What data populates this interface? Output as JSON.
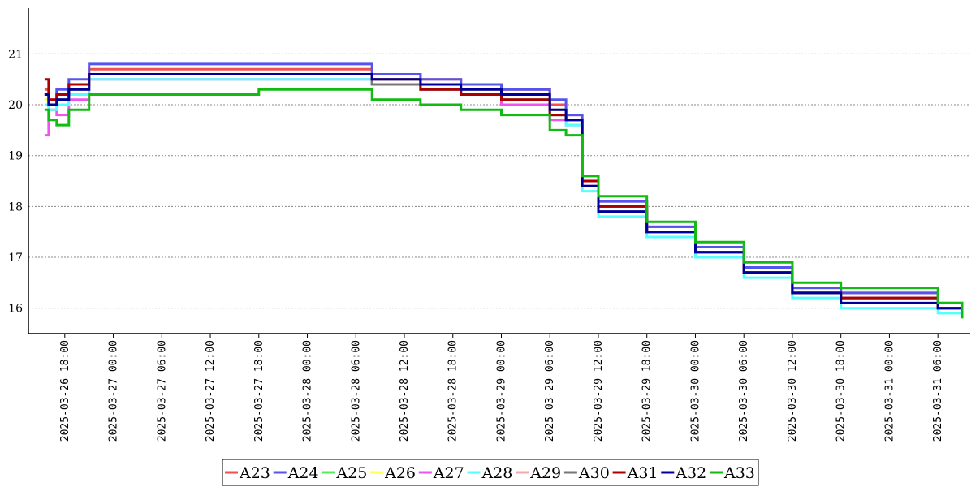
{
  "chart_data": {
    "type": "line",
    "title": "",
    "xlabel": "",
    "ylabel": "",
    "ylim": [
      15.5,
      21.9
    ],
    "xlim": [
      "2025-03-26 13:30",
      "2025-03-31 10:00"
    ],
    "y_ticks": [
      16,
      17,
      18,
      19,
      20,
      21
    ],
    "x_ticks": [
      "2025-03-26 18:00",
      "2025-03-27 00:00",
      "2025-03-27 06:00",
      "2025-03-27 12:00",
      "2025-03-27 18:00",
      "2025-03-28 00:00",
      "2025-03-28 06:00",
      "2025-03-28 12:00",
      "2025-03-28 18:00",
      "2025-03-29 00:00",
      "2025-03-29 06:00",
      "2025-03-29 12:00",
      "2025-03-29 18:00",
      "2025-03-30 00:00",
      "2025-03-30 06:00",
      "2025-03-30 12:00",
      "2025-03-30 18:00",
      "2025-03-31 00:00",
      "2025-03-31 06:00"
    ],
    "grid": "horizontal-dotted",
    "legend_position": "bottom-center",
    "series": [
      {
        "name": "A23",
        "color": "#f05050",
        "x": [
          "2025-03-26 15:30",
          "2025-03-26 16:00",
          "2025-03-26 17:00",
          "2025-03-26 18:30",
          "2025-03-26 21:00",
          "2025-03-27 06:00",
          "2025-03-27 18:00",
          "2025-03-28 05:00",
          "2025-03-28 08:00",
          "2025-03-28 14:00",
          "2025-03-28 19:00",
          "2025-03-29 00:00",
          "2025-03-29 06:00",
          "2025-03-29 08:00",
          "2025-03-29 10:00",
          "2025-03-29 12:00",
          "2025-03-29 18:00",
          "2025-03-30 00:00",
          "2025-03-30 06:00",
          "2025-03-30 12:00",
          "2025-03-30 18:00",
          "2025-03-31 06:00",
          "2025-03-31 09:00"
        ],
        "y": [
          20.3,
          20.1,
          20.2,
          20.4,
          20.7,
          20.7,
          20.7,
          20.7,
          20.6,
          20.5,
          20.4,
          20.3,
          20.0,
          19.8,
          18.5,
          18.1,
          17.6,
          17.2,
          16.8,
          16.4,
          16.3,
          16.1,
          15.9
        ]
      },
      {
        "name": "A24",
        "color": "#5555ee",
        "x": [
          "2025-03-26 15:30",
          "2025-03-26 16:00",
          "2025-03-26 17:00",
          "2025-03-26 18:30",
          "2025-03-26 21:00",
          "2025-03-27 06:00",
          "2025-03-27 18:00",
          "2025-03-28 05:00",
          "2025-03-28 08:00",
          "2025-03-28 14:00",
          "2025-03-28 19:00",
          "2025-03-29 00:00",
          "2025-03-29 06:00",
          "2025-03-29 08:00",
          "2025-03-29 10:00",
          "2025-03-29 12:00",
          "2025-03-29 18:00",
          "2025-03-30 00:00",
          "2025-03-30 06:00",
          "2025-03-30 12:00",
          "2025-03-30 18:00",
          "2025-03-31 06:00",
          "2025-03-31 09:00"
        ],
        "y": [
          20.2,
          20.0,
          20.3,
          20.5,
          20.8,
          20.8,
          20.8,
          20.8,
          20.6,
          20.5,
          20.4,
          20.3,
          20.1,
          19.8,
          18.6,
          18.1,
          17.6,
          17.2,
          16.8,
          16.4,
          16.3,
          16.1,
          16.0
        ]
      },
      {
        "name": "A25",
        "color": "#55ee55",
        "x": [
          "2025-03-26 15:30",
          "2025-03-26 16:00",
          "2025-03-26 17:00",
          "2025-03-26 18:30",
          "2025-03-26 21:00",
          "2025-03-27 06:00",
          "2025-03-27 18:00",
          "2025-03-28 05:00",
          "2025-03-28 08:00",
          "2025-03-28 14:00",
          "2025-03-28 19:00",
          "2025-03-29 00:00",
          "2025-03-29 06:00",
          "2025-03-29 08:00",
          "2025-03-29 10:00",
          "2025-03-29 12:00",
          "2025-03-29 18:00",
          "2025-03-30 00:00",
          "2025-03-30 06:00",
          "2025-03-30 12:00",
          "2025-03-30 18:00",
          "2025-03-31 06:00",
          "2025-03-31 09:00"
        ],
        "y": [
          20.1,
          19.9,
          20.1,
          20.3,
          20.6,
          20.6,
          20.6,
          20.6,
          20.5,
          20.4,
          20.3,
          20.2,
          19.9,
          19.7,
          18.5,
          18.0,
          17.5,
          17.1,
          16.7,
          16.3,
          16.2,
          16.0,
          15.8
        ]
      },
      {
        "name": "A26",
        "color": "#ffff55",
        "x": [
          "2025-03-26 15:30",
          "2025-03-26 16:00",
          "2025-03-26 17:00",
          "2025-03-26 18:30",
          "2025-03-26 21:00",
          "2025-03-27 06:00",
          "2025-03-27 18:00",
          "2025-03-28 05:00",
          "2025-03-28 08:00",
          "2025-03-28 14:00",
          "2025-03-28 19:00",
          "2025-03-29 00:00",
          "2025-03-29 06:00",
          "2025-03-29 08:00",
          "2025-03-29 10:00",
          "2025-03-29 12:00",
          "2025-03-29 18:00",
          "2025-03-30 00:00",
          "2025-03-30 06:00",
          "2025-03-30 12:00",
          "2025-03-30 18:00",
          "2025-03-31 06:00",
          "2025-03-31 09:00"
        ],
        "y": [
          20.1,
          19.9,
          20.0,
          20.2,
          20.6,
          20.6,
          20.6,
          20.6,
          20.4,
          20.3,
          20.2,
          20.1,
          19.8,
          19.7,
          18.5,
          18.0,
          17.5,
          17.1,
          16.7,
          16.3,
          16.2,
          16.0,
          15.9
        ]
      },
      {
        "name": "A27",
        "color": "#ee55ee",
        "x": [
          "2025-03-26 15:30",
          "2025-03-26 16:00",
          "2025-03-26 17:00",
          "2025-03-26 18:30",
          "2025-03-26 21:00",
          "2025-03-27 06:00",
          "2025-03-27 18:00",
          "2025-03-28 05:00",
          "2025-03-28 08:00",
          "2025-03-28 14:00",
          "2025-03-28 19:00",
          "2025-03-29 00:00",
          "2025-03-29 06:00",
          "2025-03-29 08:00",
          "2025-03-29 10:00",
          "2025-03-29 12:00",
          "2025-03-29 18:00",
          "2025-03-30 00:00",
          "2025-03-30 06:00",
          "2025-03-30 12:00",
          "2025-03-30 18:00",
          "2025-03-31 06:00",
          "2025-03-31 09:00"
        ],
        "y": [
          19.4,
          19.9,
          19.8,
          20.1,
          20.5,
          20.5,
          20.5,
          20.5,
          20.4,
          20.3,
          20.2,
          20.0,
          19.7,
          19.6,
          18.4,
          18.0,
          17.5,
          17.1,
          16.7,
          16.3,
          16.2,
          16.0,
          15.9
        ]
      },
      {
        "name": "A28",
        "color": "#55ffff",
        "x": [
          "2025-03-26 15:30",
          "2025-03-26 16:00",
          "2025-03-26 17:00",
          "2025-03-26 18:30",
          "2025-03-26 21:00",
          "2025-03-27 06:00",
          "2025-03-27 18:00",
          "2025-03-28 05:00",
          "2025-03-28 08:00",
          "2025-03-28 14:00",
          "2025-03-28 19:00",
          "2025-03-29 00:00",
          "2025-03-29 06:00",
          "2025-03-29 08:00",
          "2025-03-29 10:00",
          "2025-03-29 12:00",
          "2025-03-29 18:00",
          "2025-03-30 00:00",
          "2025-03-30 06:00",
          "2025-03-30 12:00",
          "2025-03-30 18:00",
          "2025-03-31 06:00",
          "2025-03-31 09:00"
        ],
        "y": [
          20.0,
          19.9,
          20.0,
          20.2,
          20.5,
          20.5,
          20.5,
          20.5,
          20.4,
          20.3,
          20.2,
          20.1,
          19.8,
          19.6,
          18.3,
          17.8,
          17.4,
          17.0,
          16.6,
          16.2,
          16.0,
          15.9,
          15.8
        ]
      },
      {
        "name": "A29",
        "color": "#f4aaaa",
        "x": [
          "2025-03-26 15:30",
          "2025-03-26 16:00",
          "2025-03-26 17:00",
          "2025-03-26 18:30",
          "2025-03-26 21:00",
          "2025-03-27 06:00",
          "2025-03-27 18:00",
          "2025-03-28 05:00",
          "2025-03-28 08:00",
          "2025-03-28 14:00",
          "2025-03-28 19:00",
          "2025-03-29 00:00",
          "2025-03-29 06:00",
          "2025-03-29 08:00",
          "2025-03-29 10:00",
          "2025-03-29 12:00",
          "2025-03-29 18:00",
          "2025-03-30 00:00",
          "2025-03-30 06:00",
          "2025-03-30 12:00",
          "2025-03-30 18:00",
          "2025-03-31 06:00",
          "2025-03-31 09:00"
        ],
        "y": [
          20.2,
          20.0,
          20.1,
          20.3,
          20.6,
          20.6,
          20.6,
          20.6,
          20.5,
          20.4,
          20.3,
          20.2,
          19.9,
          19.7,
          18.5,
          18.0,
          17.5,
          17.1,
          16.7,
          16.3,
          16.2,
          16.0,
          15.9
        ]
      },
      {
        "name": "A30",
        "color": "#777777",
        "x": [
          "2025-03-26 15:30",
          "2025-03-26 16:00",
          "2025-03-26 17:00",
          "2025-03-26 18:30",
          "2025-03-26 21:00",
          "2025-03-27 06:00",
          "2025-03-27 18:00",
          "2025-03-28 05:00",
          "2025-03-28 08:00",
          "2025-03-28 14:00",
          "2025-03-28 19:00",
          "2025-03-29 00:00",
          "2025-03-29 06:00",
          "2025-03-29 08:00",
          "2025-03-29 10:00",
          "2025-03-29 12:00",
          "2025-03-29 18:00",
          "2025-03-30 00:00",
          "2025-03-30 06:00",
          "2025-03-30 12:00",
          "2025-03-30 18:00",
          "2025-03-31 06:00",
          "2025-03-31 09:00"
        ],
        "y": [
          20.2,
          20.0,
          20.1,
          20.3,
          20.6,
          20.6,
          20.6,
          20.6,
          20.4,
          20.3,
          20.2,
          20.1,
          19.8,
          19.7,
          18.5,
          18.0,
          17.5,
          17.1,
          16.7,
          16.3,
          16.2,
          16.0,
          15.9
        ]
      },
      {
        "name": "A31",
        "color": "#aa0000",
        "x": [
          "2025-03-26 15:30",
          "2025-03-26 16:00",
          "2025-03-26 17:00",
          "2025-03-26 18:30",
          "2025-03-26 21:00",
          "2025-03-27 06:00",
          "2025-03-27 18:00",
          "2025-03-28 05:00",
          "2025-03-28 08:00",
          "2025-03-28 14:00",
          "2025-03-28 19:00",
          "2025-03-29 00:00",
          "2025-03-29 06:00",
          "2025-03-29 08:00",
          "2025-03-29 10:00",
          "2025-03-29 12:00",
          "2025-03-29 18:00",
          "2025-03-30 00:00",
          "2025-03-30 06:00",
          "2025-03-30 12:00",
          "2025-03-30 18:00",
          "2025-03-31 06:00",
          "2025-03-31 09:00"
        ],
        "y": [
          20.5,
          20.1,
          20.2,
          20.4,
          20.6,
          20.6,
          20.6,
          20.6,
          20.5,
          20.3,
          20.2,
          20.1,
          19.8,
          19.7,
          18.5,
          18.0,
          17.5,
          17.1,
          16.7,
          16.3,
          16.2,
          16.0,
          15.9
        ]
      },
      {
        "name": "A32",
        "color": "#000099",
        "x": [
          "2025-03-26 15:30",
          "2025-03-26 16:00",
          "2025-03-26 17:00",
          "2025-03-26 18:30",
          "2025-03-26 21:00",
          "2025-03-27 06:00",
          "2025-03-27 18:00",
          "2025-03-28 05:00",
          "2025-03-28 08:00",
          "2025-03-28 14:00",
          "2025-03-28 19:00",
          "2025-03-29 00:00",
          "2025-03-29 06:00",
          "2025-03-29 08:00",
          "2025-03-29 10:00",
          "2025-03-29 12:00",
          "2025-03-29 18:00",
          "2025-03-30 00:00",
          "2025-03-30 06:00",
          "2025-03-30 12:00",
          "2025-03-30 18:00",
          "2025-03-31 06:00",
          "2025-03-31 09:00"
        ],
        "y": [
          20.2,
          20.0,
          20.1,
          20.3,
          20.6,
          20.6,
          20.6,
          20.6,
          20.5,
          20.4,
          20.3,
          20.2,
          19.9,
          19.7,
          18.4,
          17.9,
          17.5,
          17.1,
          16.7,
          16.3,
          16.1,
          16.0,
          15.9
        ]
      },
      {
        "name": "A33",
        "color": "#11bb11",
        "x": [
          "2025-03-26 15:30",
          "2025-03-26 16:00",
          "2025-03-26 17:00",
          "2025-03-26 18:30",
          "2025-03-26 21:00",
          "2025-03-27 06:00",
          "2025-03-27 18:00",
          "2025-03-28 05:00",
          "2025-03-28 08:00",
          "2025-03-28 14:00",
          "2025-03-28 19:00",
          "2025-03-29 00:00",
          "2025-03-29 06:00",
          "2025-03-29 08:00",
          "2025-03-29 10:00",
          "2025-03-29 12:00",
          "2025-03-29 18:00",
          "2025-03-30 00:00",
          "2025-03-30 06:00",
          "2025-03-30 12:00",
          "2025-03-30 18:00",
          "2025-03-31 06:00",
          "2025-03-31 09:00"
        ],
        "y": [
          19.9,
          19.7,
          19.6,
          19.9,
          20.2,
          20.2,
          20.3,
          20.3,
          20.1,
          20.0,
          19.9,
          19.8,
          19.5,
          19.4,
          18.6,
          18.2,
          17.7,
          17.3,
          16.9,
          16.5,
          16.4,
          16.1,
          15.8
        ]
      }
    ]
  }
}
